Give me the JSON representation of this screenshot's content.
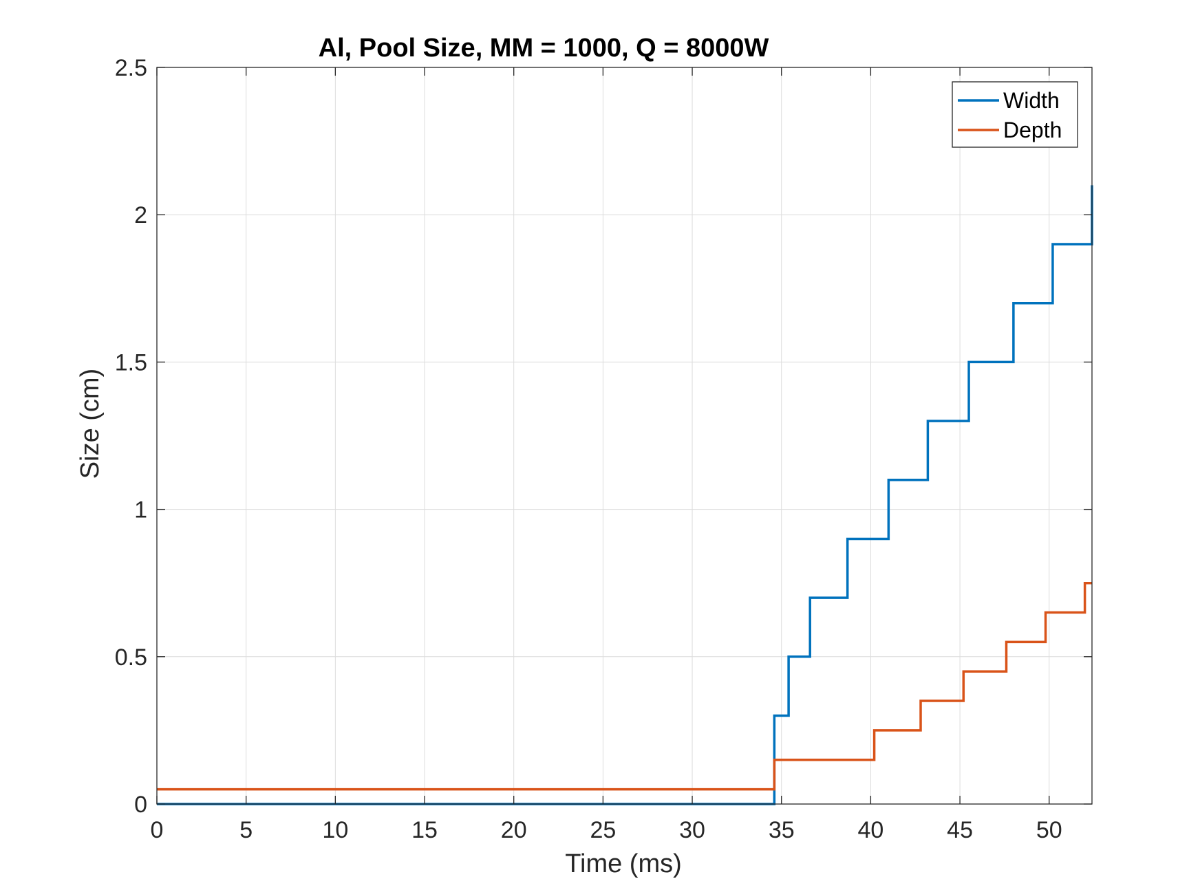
{
  "chart_data": {
    "type": "line",
    "title": "Al, Pool Size, MM = 1000, Q = 8000W",
    "xlabel": "Time (ms)",
    "ylabel": "Size (cm)",
    "xlim": [
      0,
      52.4
    ],
    "ylim": [
      0,
      2.5
    ],
    "xticks": [
      0,
      5,
      10,
      15,
      20,
      25,
      30,
      35,
      40,
      45,
      50
    ],
    "yticks": [
      0,
      0.5,
      1,
      1.5,
      2,
      2.5
    ],
    "xtick_labels": [
      "0",
      "5",
      "10",
      "15",
      "20",
      "25",
      "30",
      "35",
      "40",
      "45",
      "50"
    ],
    "ytick_labels": [
      "0",
      "0.5",
      "1",
      "1.5",
      "2",
      "2.5"
    ],
    "grid": true,
    "legend_position": "top-right",
    "series": [
      {
        "name": "Width",
        "color": "#0072BD",
        "points": [
          [
            0,
            0
          ],
          [
            34.6,
            0
          ],
          [
            34.6,
            0.3
          ],
          [
            35.4,
            0.3
          ],
          [
            35.4,
            0.5
          ],
          [
            36.6,
            0.5
          ],
          [
            36.6,
            0.7
          ],
          [
            38.7,
            0.7
          ],
          [
            38.7,
            0.9
          ],
          [
            41.0,
            0.9
          ],
          [
            41.0,
            1.1
          ],
          [
            43.2,
            1.1
          ],
          [
            43.2,
            1.3
          ],
          [
            45.5,
            1.3
          ],
          [
            45.5,
            1.5
          ],
          [
            48.0,
            1.5
          ],
          [
            48.0,
            1.7
          ],
          [
            50.2,
            1.7
          ],
          [
            50.2,
            1.9
          ],
          [
            52.4,
            1.9
          ],
          [
            52.4,
            2.1
          ]
        ]
      },
      {
        "name": "Depth",
        "color": "#D95319",
        "points": [
          [
            0,
            0.05
          ],
          [
            34.6,
            0.05
          ],
          [
            34.6,
            0.15
          ],
          [
            40.2,
            0.15
          ],
          [
            40.2,
            0.25
          ],
          [
            42.8,
            0.25
          ],
          [
            42.8,
            0.35
          ],
          [
            45.2,
            0.35
          ],
          [
            45.2,
            0.45
          ],
          [
            47.6,
            0.45
          ],
          [
            47.6,
            0.55
          ],
          [
            49.8,
            0.55
          ],
          [
            49.8,
            0.65
          ],
          [
            52.0,
            0.65
          ],
          [
            52.0,
            0.75
          ],
          [
            52.4,
            0.75
          ]
        ]
      }
    ]
  }
}
